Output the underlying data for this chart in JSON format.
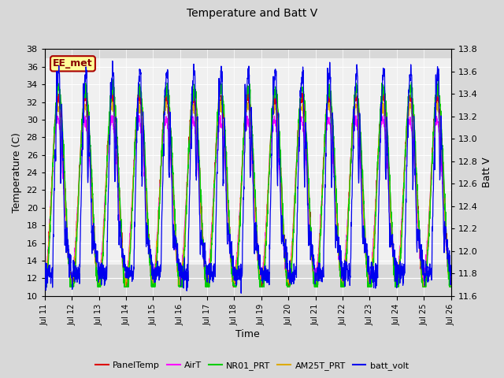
{
  "title": "Temperature and Batt V",
  "xlabel": "Time",
  "ylabel_left": "Temperature (C)",
  "ylabel_right": "Batt V",
  "annotation": "EE_met",
  "xlim": [
    0,
    15
  ],
  "ylim_left": [
    10,
    38
  ],
  "ylim_right": [
    11.6,
    13.8
  ],
  "yticks_left": [
    10,
    12,
    14,
    16,
    18,
    20,
    22,
    24,
    26,
    28,
    30,
    32,
    34,
    36,
    38
  ],
  "yticks_right": [
    11.6,
    11.8,
    12.0,
    12.2,
    12.4,
    12.6,
    12.8,
    13.0,
    13.2,
    13.4,
    13.6,
    13.8
  ],
  "xtick_labels": [
    "Jul 11",
    "Jul 12",
    "Jul 13",
    "Jul 14",
    "Jul 15",
    "Jul 16",
    "Jul 17",
    "Jul 18",
    "Jul 19",
    "Jul 20",
    "Jul 21",
    "Jul 22",
    "Jul 23",
    "Jul 24",
    "Jul 25",
    "Jul 26"
  ],
  "xtick_positions": [
    0,
    1,
    2,
    3,
    4,
    5,
    6,
    7,
    8,
    9,
    10,
    11,
    12,
    13,
    14,
    15
  ],
  "colors": {
    "PanelTemp": "#dd0000",
    "AirT": "#ff00ff",
    "NR01_PRT": "#00cc00",
    "AM25T_PRT": "#ddaa00",
    "batt_volt": "#0000ee"
  },
  "bg_color": "#d8d8d8",
  "plot_bg_light": "#f0f0f0",
  "plot_bg_dark": "#d8d8d8",
  "annotation_bg": "#ffff99",
  "annotation_border": "#aa0000",
  "annotation_text_color": "#880000",
  "title_fontsize": 10,
  "axis_fontsize": 9,
  "tick_fontsize": 8,
  "xtick_fontsize": 7,
  "legend_fontsize": 8
}
